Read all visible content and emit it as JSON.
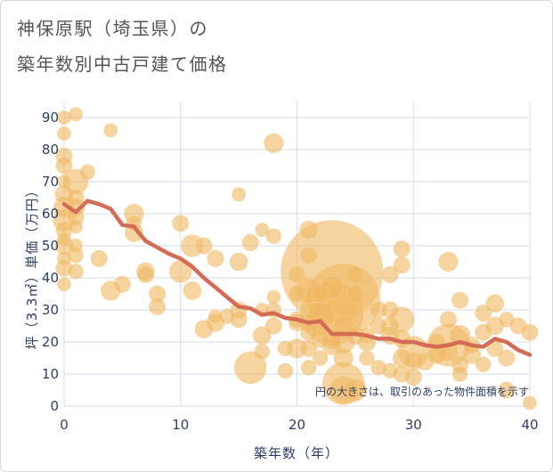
{
  "title": [
    "神保原駅（埼玉県）の",
    "築年数別中古戸建て価格"
  ],
  "chart_data": {
    "type": "scatter",
    "xlabel": "築年数（年）",
    "ylabel": "坪（3.3㎡）単価（万円）",
    "xlim": [
      0,
      40
    ],
    "ylim": [
      0,
      95
    ],
    "xticks": [
      0,
      10,
      20,
      30,
      40
    ],
    "yticks": [
      0,
      10,
      20,
      30,
      40,
      50,
      60,
      70,
      80,
      90
    ],
    "grid": true,
    "annotation": "円の大きさは、取引のあった物件面積を示す",
    "colors": {
      "bubble": "#f0b860",
      "trend": "#d36b55",
      "grid": "#d3ddeb",
      "axis_text": "#2d3e68"
    },
    "points": [
      [
        0,
        90,
        1
      ],
      [
        0,
        85,
        1
      ],
      [
        0,
        78,
        1.2
      ],
      [
        0,
        75,
        1.2
      ],
      [
        0,
        70,
        1
      ],
      [
        0,
        66,
        1.3
      ],
      [
        0,
        62,
        1.5
      ],
      [
        0,
        58,
        1.6
      ],
      [
        0,
        55,
        1.2
      ],
      [
        0,
        52,
        1
      ],
      [
        0,
        50,
        1.3
      ],
      [
        0,
        46,
        1
      ],
      [
        0,
        43,
        1.2
      ],
      [
        0,
        38,
        1
      ],
      [
        1,
        91,
        1
      ],
      [
        1,
        70,
        1.8
      ],
      [
        1,
        65,
        1.2
      ],
      [
        1,
        62,
        1.3
      ],
      [
        1,
        59,
        1.2
      ],
      [
        1,
        56,
        1
      ],
      [
        1,
        50,
        1
      ],
      [
        1,
        47,
        1.1
      ],
      [
        1,
        42,
        1.1
      ],
      [
        2,
        73,
        1.1
      ],
      [
        3,
        46,
        1.2
      ],
      [
        4,
        86,
        1
      ],
      [
        4,
        36,
        1.4
      ],
      [
        5,
        38,
        1.2
      ],
      [
        6,
        60,
        1.4
      ],
      [
        6,
        57,
        1.1
      ],
      [
        6,
        54,
        1.3
      ],
      [
        7,
        42,
        1.3
      ],
      [
        7,
        41,
        1.2
      ],
      [
        8,
        35,
        1.2
      ],
      [
        8,
        31,
        1.2
      ],
      [
        10,
        57,
        1.2
      ],
      [
        10,
        42,
        1.6
      ],
      [
        11,
        50,
        1.6
      ],
      [
        11,
        36,
        1.3
      ],
      [
        12,
        50,
        1.2
      ],
      [
        12,
        24,
        1.3
      ],
      [
        13,
        46,
        1.2
      ],
      [
        13,
        26,
        1.3
      ],
      [
        13,
        28,
        1
      ],
      [
        14,
        28,
        1.1
      ],
      [
        15,
        66,
        1
      ],
      [
        15,
        45,
        1.3
      ],
      [
        15,
        30,
        1.2
      ],
      [
        15,
        27,
        1.2
      ],
      [
        16,
        51,
        1.2
      ],
      [
        16,
        12,
        2.3
      ],
      [
        17,
        55,
        1
      ],
      [
        17,
        22,
        1.3
      ],
      [
        17,
        17,
        1.1
      ],
      [
        17,
        30,
        1
      ],
      [
        18,
        82,
        1.4
      ],
      [
        18,
        53,
        1.1
      ],
      [
        18,
        30,
        1.1
      ],
      [
        18,
        25,
        1.2
      ],
      [
        18,
        34,
        1
      ],
      [
        19,
        18,
        1.1
      ],
      [
        19,
        11,
        1.1
      ],
      [
        20,
        41,
        1.2
      ],
      [
        20,
        35,
        1.2
      ],
      [
        20,
        26,
        1.2
      ],
      [
        20,
        18,
        1.4
      ],
      [
        20,
        27,
        1.2
      ],
      [
        21,
        55,
        1.3
      ],
      [
        21,
        47,
        1.2
      ],
      [
        21,
        36,
        1.8
      ],
      [
        21,
        26,
        1.3
      ],
      [
        21,
        23,
        1.2
      ],
      [
        21,
        18,
        1.2
      ],
      [
        21,
        12,
        1.1
      ],
      [
        22,
        35,
        1.2
      ],
      [
        22,
        28,
        2
      ],
      [
        22,
        25,
        1.3
      ],
      [
        22,
        21,
        1.3
      ],
      [
        22,
        15,
        1.1
      ],
      [
        23,
        42,
        7.2
      ],
      [
        23,
        29,
        4.5
      ],
      [
        23,
        37,
        1.6
      ],
      [
        23,
        21,
        1.4
      ],
      [
        23,
        19,
        1.4
      ],
      [
        24,
        33,
        5.2
      ],
      [
        24,
        25,
        1.4
      ],
      [
        24,
        20,
        1.6
      ],
      [
        24,
        15,
        1.4
      ],
      [
        24,
        7,
        3
      ],
      [
        24,
        5,
        2
      ],
      [
        25,
        41,
        1.2
      ],
      [
        25,
        35,
        1.2
      ],
      [
        25,
        22,
        1.3
      ],
      [
        25,
        5,
        1.6
      ],
      [
        26,
        20,
        1.3
      ],
      [
        26,
        22,
        1.1
      ],
      [
        26,
        15,
        1.1
      ],
      [
        27,
        30,
        1.2
      ],
      [
        27,
        25,
        1.2
      ],
      [
        27,
        12,
        1.1
      ],
      [
        28,
        41,
        1.2
      ],
      [
        28,
        30,
        1.2
      ],
      [
        28,
        25,
        1.3
      ],
      [
        28,
        22,
        1.3
      ],
      [
        28,
        11,
        1.1
      ],
      [
        29,
        49,
        1.2
      ],
      [
        29,
        44,
        1.2
      ],
      [
        29,
        27,
        1.8
      ],
      [
        29,
        21,
        1.3
      ],
      [
        29,
        15,
        1.3
      ],
      [
        29,
        10,
        1.2
      ],
      [
        30,
        17,
        2.2
      ],
      [
        30,
        14,
        1.3
      ],
      [
        30,
        9,
        1.2
      ],
      [
        31,
        14,
        1.3
      ],
      [
        32,
        20,
        1.2
      ],
      [
        32,
        16,
        1.3
      ],
      [
        33,
        45,
        1.4
      ],
      [
        33,
        27,
        1.2
      ],
      [
        33,
        19,
        3
      ],
      [
        33,
        17,
        1.4
      ],
      [
        34,
        33,
        1.2
      ],
      [
        34,
        22,
        1.5
      ],
      [
        34,
        13,
        1.2
      ],
      [
        34,
        10,
        1.1
      ],
      [
        35,
        16,
        1.3
      ],
      [
        35,
        19,
        1.2
      ],
      [
        36,
        29,
        1.2
      ],
      [
        36,
        23,
        1.2
      ],
      [
        36,
        13,
        1.1
      ],
      [
        37,
        32,
        1.3
      ],
      [
        37,
        25,
        1.3
      ],
      [
        37,
        18,
        1.2
      ],
      [
        38,
        27,
        1.1
      ],
      [
        38,
        15,
        1.2
      ],
      [
        38,
        5,
        1.2
      ],
      [
        39,
        25,
        1.2
      ],
      [
        40,
        23,
        1.2
      ],
      [
        40,
        1,
        1
      ]
    ],
    "trend": {
      "x": [
        0,
        1,
        2,
        3,
        4,
        5,
        6,
        7,
        8,
        9,
        10,
        11,
        12,
        13,
        14,
        15,
        16,
        17,
        18,
        19,
        20,
        21,
        22,
        23,
        24,
        25,
        26,
        27,
        28,
        29,
        30,
        31,
        32,
        33,
        34,
        35,
        36,
        37,
        38,
        39,
        40
      ],
      "y": [
        63,
        60.5,
        64,
        63,
        61.5,
        56.5,
        56,
        51.5,
        49.5,
        47.5,
        46,
        43.5,
        40,
        37,
        34,
        31,
        30.5,
        28.5,
        29,
        27.5,
        27,
        26,
        26.5,
        22.5,
        22.5,
        22.5,
        22,
        21,
        21,
        20,
        20,
        19,
        18.5,
        19,
        20,
        19,
        18.5,
        21,
        20,
        17.5,
        16
      ]
    }
  }
}
